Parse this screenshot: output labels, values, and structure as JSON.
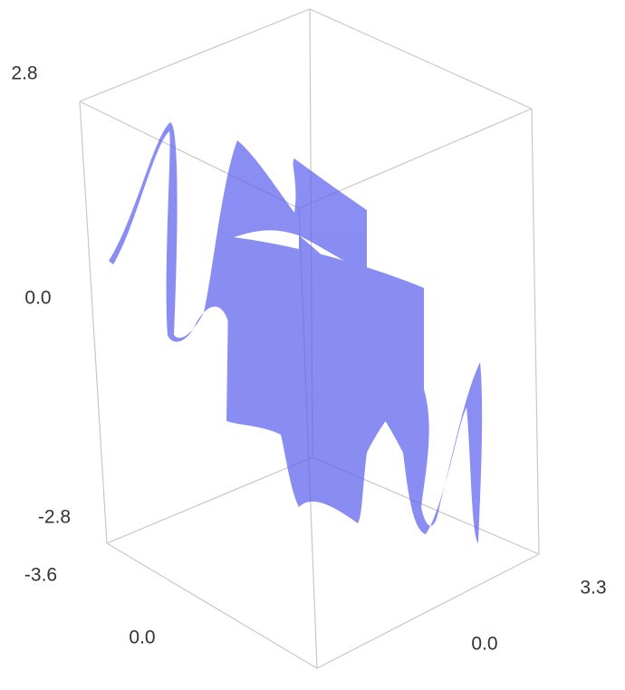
{
  "chart_data": {
    "type": "surface",
    "xticks": [
      -3.6,
      {
        "value": 0,
        "label": "0.0"
      }
    ],
    "yticks": [
      {
        "value": 0,
        "label": "0.0"
      },
      3.3
    ],
    "zticks": [
      -2.8,
      {
        "value": 0,
        "label": "0.0"
      },
      2.8
    ],
    "color": "#5d62ee"
  }
}
